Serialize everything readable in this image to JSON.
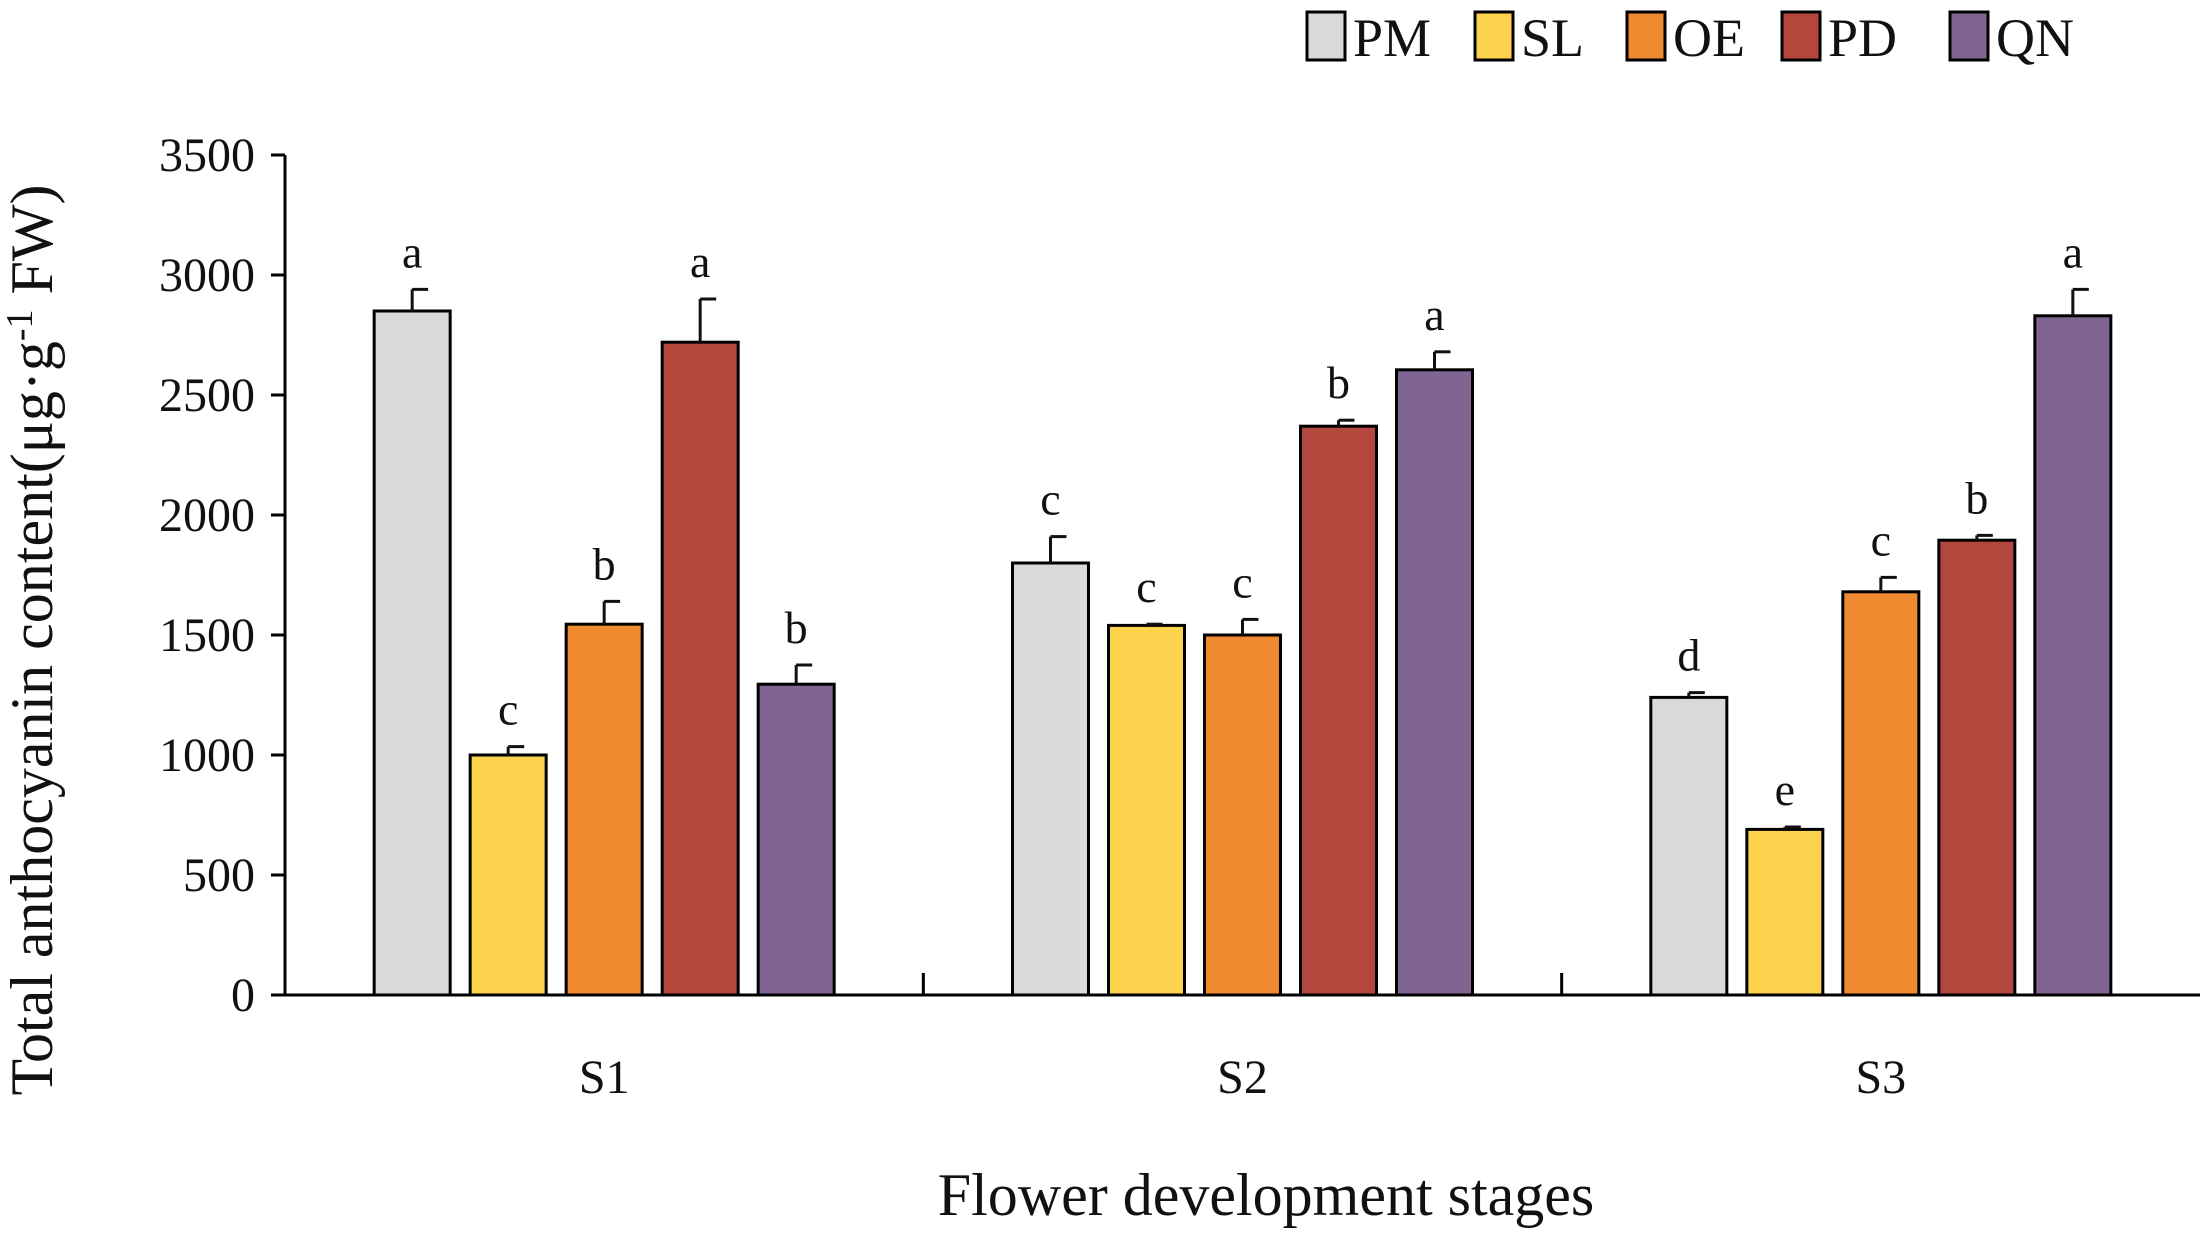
{
  "chart_data": {
    "type": "bar",
    "title": "",
    "xlabel": "Flower development stages",
    "ylabel": "Total anthocyanin content(μg·g",
    "ylabel_sup": "-1",
    "ylabel_tail": " FW)",
    "ylim": [
      0,
      3500
    ],
    "yticks": [
      0,
      500,
      1000,
      1500,
      2000,
      2500,
      3000,
      3500
    ],
    "categories": [
      "S1",
      "S2",
      "S3"
    ],
    "legend_position": "top-right",
    "series": [
      {
        "name": "PM",
        "color": "#D9D9D9",
        "values": [
          2850,
          1800,
          1240
        ],
        "errors": [
          90,
          110,
          20
        ],
        "letters": [
          "a",
          "c",
          "d"
        ]
      },
      {
        "name": "SL",
        "color": "#FCD34D",
        "values": [
          1000,
          1540,
          690
        ],
        "errors": [
          35,
          5,
          10
        ],
        "letters": [
          "c",
          "c",
          "e"
        ]
      },
      {
        "name": "OE",
        "color": "#F08A30",
        "values": [
          1545,
          1500,
          1680
        ],
        "errors": [
          95,
          65,
          60
        ],
        "letters": [
          "b",
          "c",
          "c"
        ]
      },
      {
        "name": "PD",
        "color": "#B3473E",
        "values": [
          2720,
          2370,
          1895
        ],
        "errors": [
          180,
          25,
          20
        ],
        "letters": [
          "a",
          "b",
          "b"
        ]
      },
      {
        "name": "QN",
        "color": "#806593",
        "values": [
          1295,
          2605,
          2830
        ],
        "errors": [
          80,
          75,
          110
        ],
        "letters": [
          "b",
          "a",
          "a"
        ]
      }
    ]
  }
}
